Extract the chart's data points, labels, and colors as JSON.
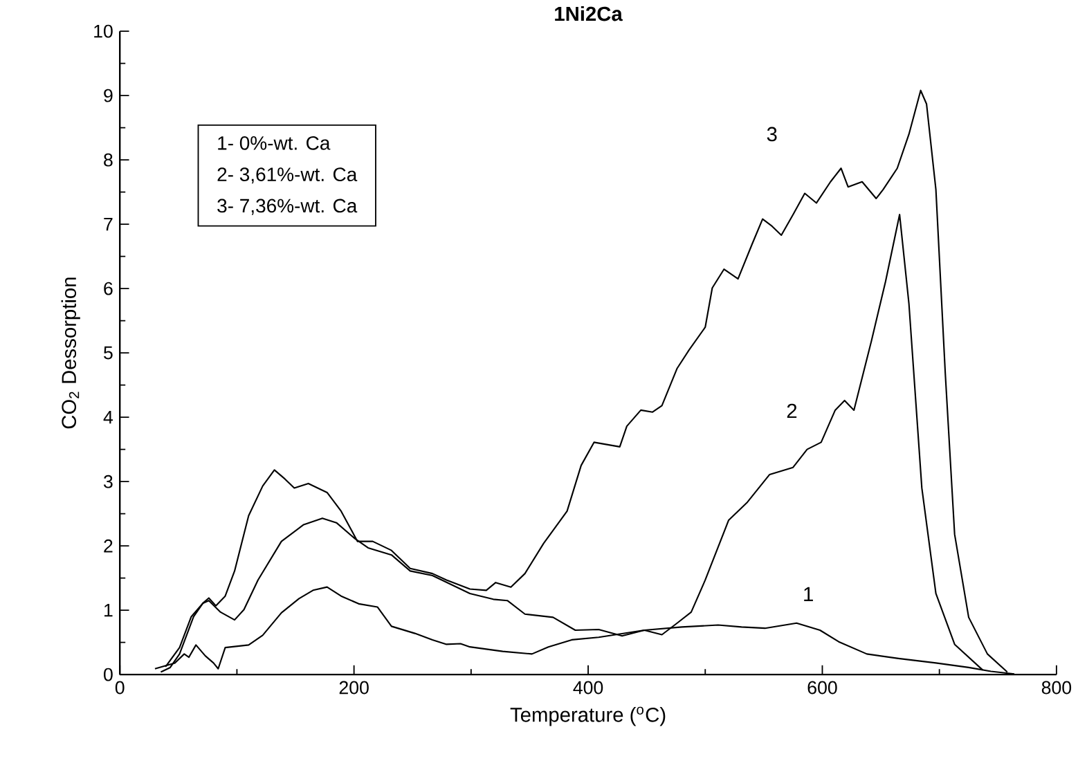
{
  "chart_data": {
    "type": "line",
    "title": "1Ni2Ca",
    "xlabel": "Temperature ($^{o}$C)",
    "ylabel": "CO$_{2}$ Dessorption",
    "xlim": [
      0,
      800
    ],
    "xticks": [
      0,
      200,
      400,
      600,
      800
    ],
    "ylim": [
      0,
      10
    ],
    "yticks": [
      0,
      1,
      2,
      3,
      4,
      5,
      6,
      7,
      8,
      9,
      10
    ],
    "grid": false,
    "legend": false,
    "marker": "none",
    "line_style": "solid",
    "annotations": [
      "1- 0%-wt. Ca",
      "2- 3,61%-wt. Ca",
      "3- 7,36%-wt. Ca"
    ],
    "series": [
      {
        "name": "1",
        "color": "#000000",
        "x": [
          30,
          47,
          55,
          59,
          65,
          73,
          80,
          84,
          90,
          110,
          122,
          138,
          153,
          165,
          177,
          189,
          204,
          220,
          232,
          252,
          267,
          279,
          291,
          299,
          327,
          352,
          366,
          386,
          409,
          448,
          480,
          511,
          531,
          551,
          578,
          598,
          614,
          638,
          665,
          697,
          725,
          744,
          764
        ],
        "values": [
          0.09,
          0.18,
          0.32,
          0.27,
          0.46,
          0.29,
          0.18,
          0.09,
          0.42,
          0.46,
          0.61,
          0.96,
          1.18,
          1.31,
          1.36,
          1.22,
          1.1,
          1.05,
          0.75,
          0.64,
          0.54,
          0.47,
          0.48,
          0.43,
          0.36,
          0.32,
          0.43,
          0.54,
          0.58,
          0.69,
          0.74,
          0.77,
          0.74,
          0.72,
          0.8,
          0.69,
          0.51,
          0.32,
          0.25,
          0.18,
          0.11,
          0.05,
          0.01
        ]
      },
      {
        "name": "2",
        "color": "#000000",
        "x": [
          35,
          43,
          51,
          63,
          71,
          76,
          86,
          98,
          106,
          118,
          138,
          157,
          173,
          185,
          201,
          212,
          232,
          248,
          267,
          283,
          299,
          319,
          331,
          346,
          370,
          389,
          409,
          429,
          448,
          463,
          476,
          488,
          500,
          520,
          536,
          555,
          575,
          587,
          599,
          611,
          619,
          627,
          642,
          654,
          666,
          674,
          685,
          697,
          713,
          737
        ],
        "values": [
          0.04,
          0.11,
          0.32,
          0.9,
          1.11,
          1.15,
          0.97,
          0.85,
          1.01,
          1.47,
          2.07,
          2.33,
          2.43,
          2.36,
          2.11,
          1.97,
          1.86,
          1.61,
          1.54,
          1.4,
          1.26,
          1.17,
          1.15,
          0.94,
          0.89,
          0.69,
          0.7,
          0.6,
          0.69,
          0.62,
          0.8,
          0.97,
          1.47,
          2.4,
          2.68,
          3.11,
          3.22,
          3.5,
          3.61,
          4.11,
          4.26,
          4.11,
          5.19,
          6.11,
          7.15,
          5.76,
          2.9,
          1.26,
          0.47,
          0.07
        ]
      },
      {
        "name": "3",
        "color": "#000000",
        "x": [
          39,
          51,
          61,
          71,
          76,
          82,
          90,
          98,
          110,
          122,
          132,
          141,
          149,
          161,
          177,
          189,
          203,
          216,
          232,
          248,
          267,
          279,
          299,
          313,
          321,
          334,
          346,
          362,
          382,
          394,
          405,
          427,
          433,
          445,
          455,
          463,
          476,
          486,
          500,
          506,
          516,
          528,
          540,
          549,
          557,
          565,
          575,
          585,
          595,
          607,
          616,
          622,
          634,
          646,
          652,
          664,
          674,
          684,
          689,
          697,
          705,
          713,
          725,
          741,
          758
        ],
        "values": [
          0.12,
          0.42,
          0.9,
          1.11,
          1.19,
          1.07,
          1.22,
          1.61,
          2.47,
          2.93,
          3.18,
          3.04,
          2.9,
          2.97,
          2.83,
          2.54,
          2.07,
          2.07,
          1.93,
          1.65,
          1.57,
          1.47,
          1.33,
          1.31,
          1.43,
          1.36,
          1.57,
          2.04,
          2.54,
          3.25,
          3.61,
          3.54,
          3.86,
          4.11,
          4.08,
          4.18,
          4.76,
          5.04,
          5.4,
          6.01,
          6.3,
          6.15,
          6.69,
          7.08,
          6.97,
          6.83,
          7.15,
          7.48,
          7.33,
          7.66,
          7.87,
          7.58,
          7.66,
          7.4,
          7.54,
          7.87,
          8.4,
          9.08,
          8.87,
          7.54,
          4.69,
          2.18,
          0.89,
          0.32,
          0.04
        ]
      }
    ]
  }
}
